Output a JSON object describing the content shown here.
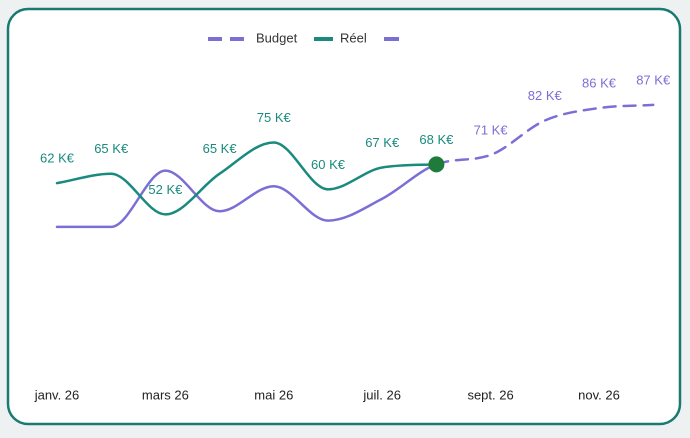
{
  "chart_data": {
    "type": "line",
    "categories": [
      "janv. 26",
      null,
      "mars 26",
      null,
      "mai 26",
      null,
      "juil. 26",
      null,
      "sept. 26",
      null,
      "nov. 26",
      null
    ],
    "series": [
      {
        "name": "Budget",
        "color": "#7b6fd6",
        "values": [
          48,
          48,
          66,
          53,
          61,
          50,
          57,
          68,
          71,
          82,
          86,
          87
        ],
        "value_labels": [
          null,
          null,
          null,
          null,
          null,
          null,
          null,
          null,
          "71 K€",
          "82 K€",
          "86 K€",
          "87 K€"
        ]
      },
      {
        "name": "Réel",
        "color": "#1a8a7e",
        "values": [
          62,
          65,
          52,
          65,
          75,
          60,
          67,
          68,
          null,
          null,
          null,
          null
        ],
        "value_labels": [
          "62 K€",
          "65 K€",
          "52 K€",
          "65 K€",
          "75 K€",
          "60 K€",
          "67 K€",
          "68 K€",
          null,
          null,
          null,
          null
        ]
      }
    ],
    "ylim": [
      0,
      110
    ]
  }
}
